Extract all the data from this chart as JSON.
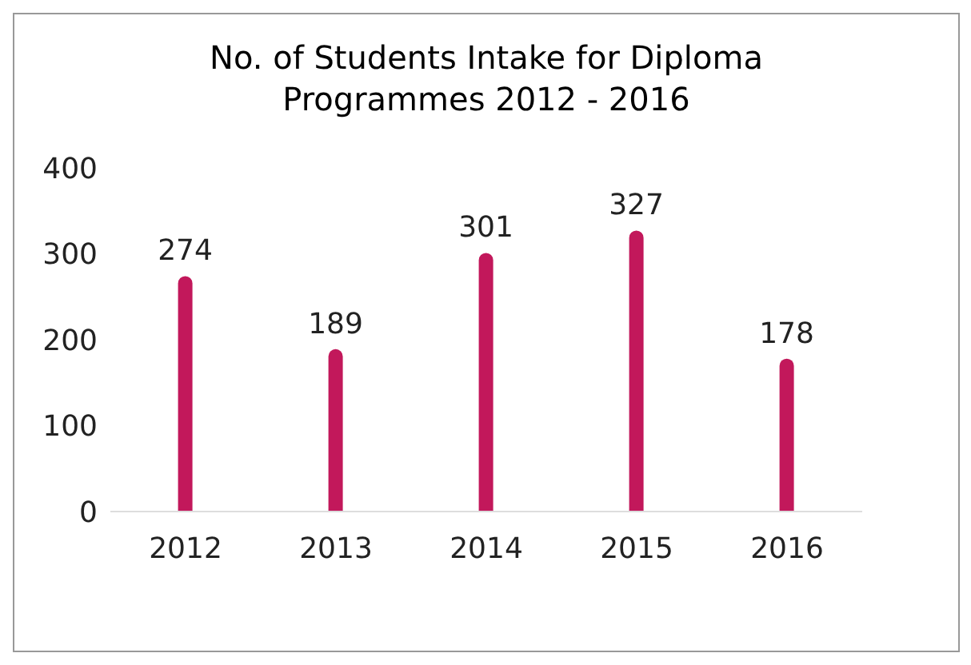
{
  "chart_data": {
    "type": "bar",
    "title": "No. of Students Intake for Diploma Programmes 2012 - 2016",
    "categories": [
      "2012",
      "2013",
      "2014",
      "2015",
      "2016"
    ],
    "values": [
      274,
      189,
      301,
      327,
      178
    ],
    "color": "#c2185b",
    "ylim": [
      0,
      400
    ],
    "yticks": [
      0,
      100,
      200,
      300,
      400
    ],
    "grid": false,
    "data_labels": true
  }
}
